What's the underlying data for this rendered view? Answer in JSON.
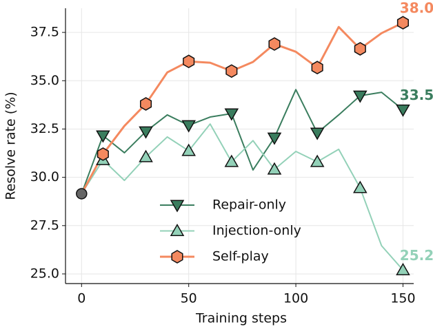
{
  "chart_data": {
    "type": "line",
    "x_label": "Training steps",
    "y_label": "Resolve rate (%)",
    "x": [
      0,
      10,
      20,
      30,
      40,
      50,
      60,
      70,
      80,
      90,
      100,
      110,
      120,
      130,
      140,
      150
    ],
    "series": [
      {
        "name": "Repair-only",
        "color": "#3a7d5e",
        "marker": "triangle-down",
        "values": [
          29.15,
          32.16,
          31.27,
          32.37,
          33.23,
          32.69,
          33.12,
          33.3,
          30.38,
          32.05,
          34.54,
          32.3,
          33.23,
          34.22,
          34.4,
          33.5
        ],
        "value_labels": [
          null,
          null,
          null,
          null,
          null,
          null,
          null,
          null,
          null,
          null,
          null,
          null,
          null,
          null,
          null,
          "33.5"
        ]
      },
      {
        "name": "Injection-only",
        "color": "#93d1b8",
        "marker": "triangle-up",
        "values": [
          29.15,
          30.9,
          29.84,
          31.05,
          32.09,
          31.37,
          32.76,
          30.8,
          31.9,
          30.41,
          31.34,
          30.8,
          31.45,
          29.45,
          26.46,
          25.2
        ],
        "value_labels": [
          null,
          null,
          null,
          null,
          null,
          null,
          null,
          null,
          null,
          null,
          null,
          null,
          null,
          null,
          null,
          "25.2"
        ]
      },
      {
        "name": "Self-play",
        "color": "#f4895f",
        "marker": "hexagon",
        "values": [
          29.15,
          31.2,
          32.66,
          33.8,
          35.43,
          36.0,
          35.93,
          35.5,
          35.97,
          36.9,
          36.5,
          35.68,
          37.78,
          36.65,
          37.46,
          38.0
        ],
        "value_labels": [
          null,
          null,
          null,
          null,
          null,
          null,
          null,
          null,
          null,
          null,
          null,
          null,
          null,
          null,
          null,
          "38.0"
        ]
      }
    ],
    "start_color": "#666666",
    "marker_every": 2,
    "marker_offset": 1,
    "xlim": [
      -7.5,
      155
    ],
    "xticks": [
      0,
      50,
      100,
      150
    ],
    "ylim": [
      24.5,
      38.75
    ],
    "yticks": [
      {
        "value": 25,
        "label": "25.0"
      },
      {
        "value": 27.5,
        "label": "27.5"
      },
      {
        "value": 30,
        "label": "30.0"
      },
      {
        "value": 32.5,
        "label": "32.5"
      },
      {
        "value": 35,
        "label": "35.0"
      },
      {
        "value": 37.5,
        "label": "37.5"
      }
    ],
    "grid": true,
    "legend": "lower center"
  }
}
